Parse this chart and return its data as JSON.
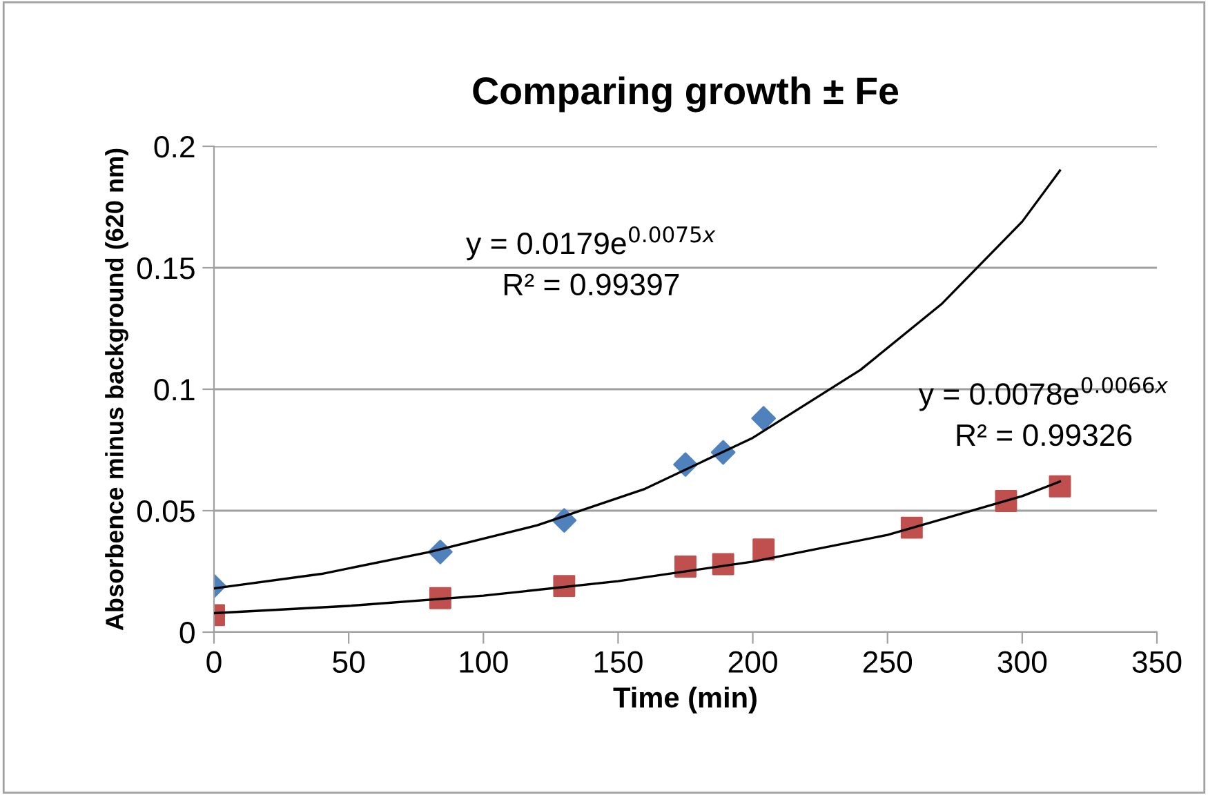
{
  "chart_data": {
    "type": "scatter",
    "title": "Comparing growth ± Fe",
    "xlabel": "Time (min)",
    "ylabel": "Absorbence minus background (620 nm)",
    "xlim": [
      0,
      350
    ],
    "xticks": [
      0,
      50,
      100,
      150,
      200,
      250,
      300,
      350
    ],
    "ylim": [
      0,
      0.2
    ],
    "yticks": [
      0,
      0.05,
      0.1,
      0.15,
      0.2
    ],
    "grid": "y",
    "legend": false,
    "series": [
      {
        "marker": "diamond",
        "color": "#4f81bd",
        "x": [
          0,
          84,
          130,
          175,
          189,
          204
        ],
        "values": [
          0.019,
          0.033,
          0.046,
          0.069,
          0.074,
          0.088
        ]
      },
      {
        "marker": "square",
        "color": "#c0504d",
        "x": [
          0,
          84,
          130,
          175,
          189,
          204,
          259,
          294,
          314
        ],
        "values": [
          0.007,
          0.014,
          0.019,
          0.027,
          0.028,
          0.034,
          0.043,
          0.054,
          0.06
        ]
      },
      {
        "type": "line",
        "marker": "none",
        "color": "#000000",
        "x": [
          0,
          40,
          80,
          120,
          160,
          200,
          240,
          270,
          300,
          314
        ],
        "values": [
          0.018,
          0.024,
          0.033,
          0.044,
          0.059,
          0.08,
          0.108,
          0.135,
          0.169,
          0.19
        ]
      },
      {
        "type": "line",
        "marker": "none",
        "color": "#000000",
        "x": [
          0,
          50,
          100,
          150,
          200,
          250,
          300,
          314
        ],
        "values": [
          0.0078,
          0.0108,
          0.015,
          0.021,
          0.029,
          0.04,
          0.056,
          0.062
        ]
      }
    ],
    "annotations": [
      "y = 0.0179e$^{0.0075x}$",
      "R² = 0.99397",
      "y = 0.0078e$^{0.0066x}$",
      "R² = 0.99326"
    ]
  }
}
